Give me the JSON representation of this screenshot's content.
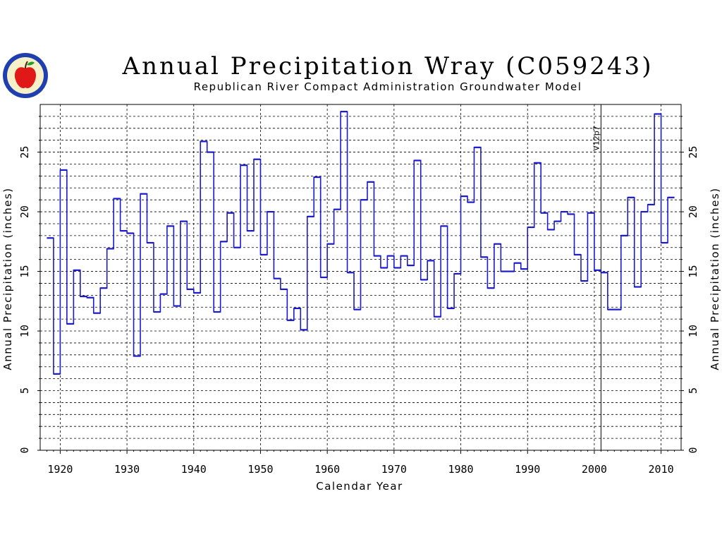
{
  "chart_data": {
    "type": "line",
    "title": "Annual Precipitation Wray (C059243)",
    "subtitle": "Republican River Compact Administration Groundwater Model",
    "xlabel": "Calendar Year",
    "ylabel": "Annual Precipitation (inches)",
    "ylabel_right": "Annual Precipitation (inches)",
    "xlim": [
      1917,
      2013
    ],
    "ylim": [
      0,
      29
    ],
    "xticks": [
      "1920",
      "1930",
      "1940",
      "1950",
      "1960",
      "1970",
      "1980",
      "1990",
      "2000",
      "2010"
    ],
    "yticks": [
      "0",
      "5",
      "10",
      "15",
      "20",
      "25"
    ],
    "grid": true,
    "vline": {
      "x": 2001,
      "label": "V12p7"
    },
    "series_color": "#1a1acc",
    "series": [
      {
        "x": [
          1918,
          1919,
          1920,
          1921,
          1922,
          1923,
          1924,
          1925,
          1926,
          1927,
          1928,
          1929,
          1930,
          1931,
          1932,
          1933,
          1934,
          1935,
          1936,
          1937,
          1938,
          1939,
          1940,
          1941,
          1942,
          1943,
          1944,
          1945,
          1946,
          1947,
          1948,
          1949,
          1950,
          1951,
          1952,
          1953,
          1954,
          1955,
          1956,
          1957,
          1958,
          1959,
          1960,
          1961,
          1962,
          1963,
          1964,
          1965,
          1966,
          1967,
          1968,
          1969,
          1970,
          1971,
          1972,
          1973,
          1974,
          1975,
          1976,
          1977,
          1978,
          1979,
          1980,
          1981,
          1982,
          1983,
          1984,
          1985,
          1986,
          1987,
          1988,
          1989,
          1990,
          1991,
          1992,
          1993,
          1994,
          1995,
          1996,
          1997,
          1998,
          1999,
          2000,
          2001,
          2002,
          2003,
          2004,
          2005,
          2006,
          2007,
          2008,
          2009,
          2010,
          2011
        ],
        "values": [
          17.8,
          6.4,
          23.5,
          10.6,
          15.1,
          12.9,
          12.8,
          11.5,
          13.6,
          16.9,
          21.1,
          18.4,
          18.2,
          7.9,
          21.5,
          17.4,
          11.6,
          13.1,
          18.8,
          12.1,
          19.2,
          13.5,
          13.2,
          25.9,
          25.0,
          11.6,
          17.5,
          19.9,
          17.0,
          23.9,
          18.4,
          24.4,
          16.4,
          20.0,
          14.4,
          13.5,
          10.9,
          11.9,
          10.1,
          19.6,
          22.9,
          14.5,
          17.3,
          20.2,
          28.4,
          14.9,
          11.8,
          21.0,
          22.5,
          16.3,
          15.3,
          16.3,
          15.3,
          16.3,
          15.5,
          24.3,
          14.3,
          15.9,
          11.2,
          18.8,
          11.9,
          14.8,
          21.3,
          20.8,
          25.4,
          16.2,
          13.6,
          17.3,
          15.0,
          15.0,
          15.7,
          15.2,
          18.7,
          24.1,
          19.9,
          18.5,
          19.2,
          20.0,
          19.8,
          16.4,
          14.2,
          19.9,
          15.1,
          14.9,
          11.8,
          11.8,
          18.0,
          21.2,
          13.7,
          20.0,
          20.6,
          28.2,
          17.4,
          21.2
        ]
      }
    ]
  },
  "logo": {
    "emblem": "apple-icon"
  }
}
